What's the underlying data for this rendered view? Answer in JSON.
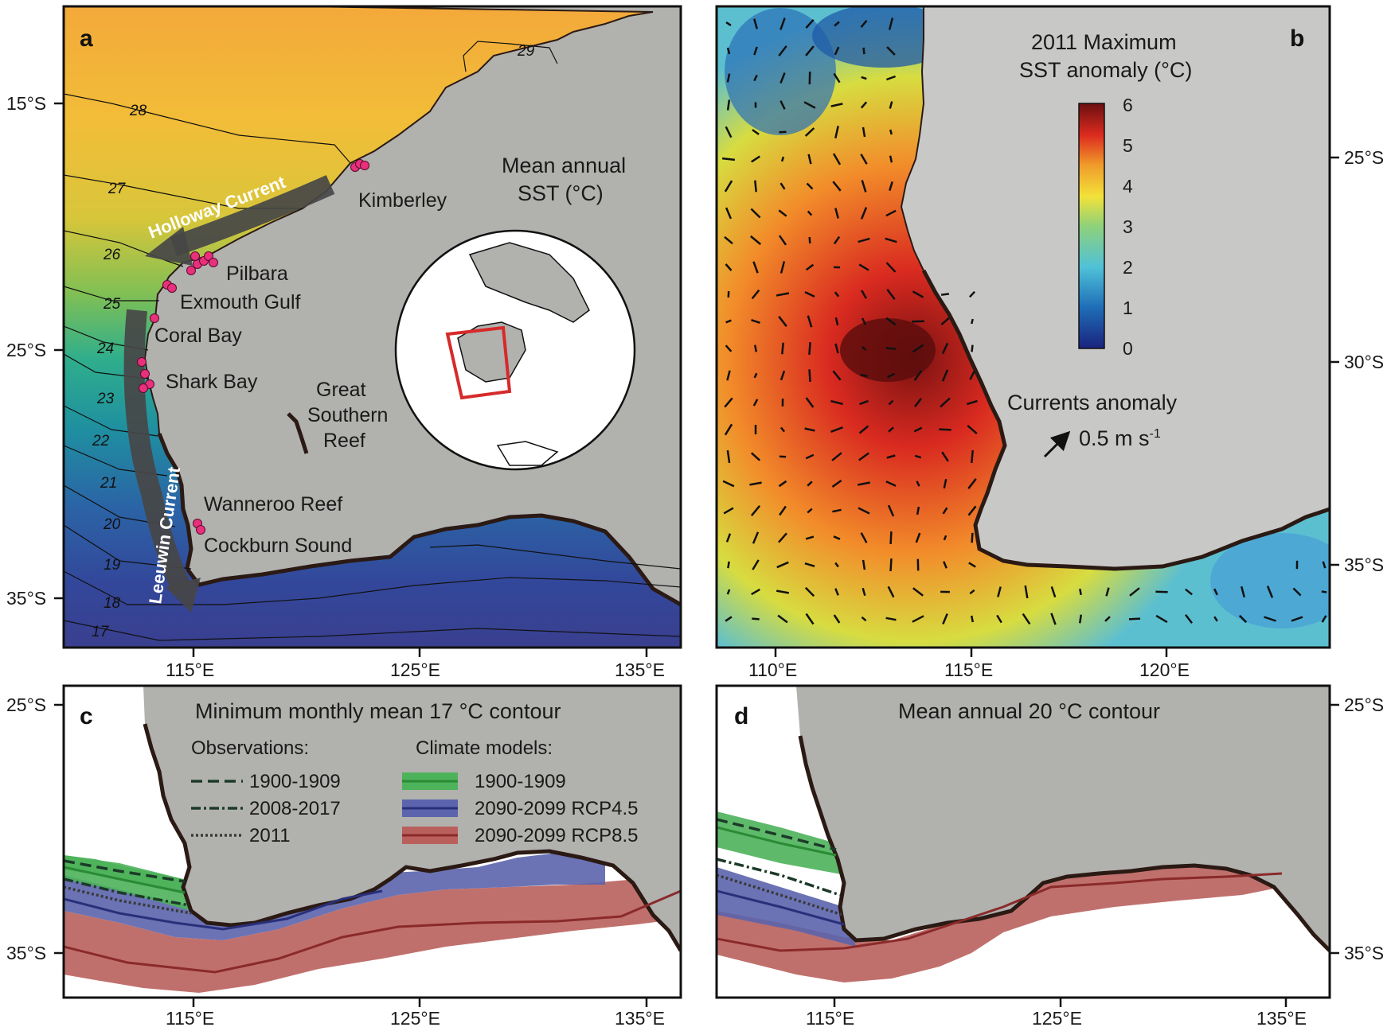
{
  "panels": {
    "a": {
      "letter": "a",
      "title_line1": "Mean annual",
      "title_line2": "SST (°C)",
      "y_ticks": [
        "15°S",
        "25°S",
        "35°S"
      ],
      "x_ticks": [
        "115°E",
        "125°E",
        "135°E"
      ],
      "isotherms": [
        "29",
        "28",
        "27",
        "26",
        "25",
        "24",
        "23",
        "22",
        "21",
        "20",
        "19",
        "18",
        "17"
      ],
      "currents": [
        "Holloway Current",
        "Leeuwin Current"
      ],
      "places": [
        "Kimberley",
        "Pilbara",
        "Exmouth Gulf",
        "Coral Bay",
        "Shark Bay",
        "Great",
        "Southern",
        "Reef",
        "Wanneroo Reef",
        "Cockburn Sound"
      ]
    },
    "b": {
      "letter": "b",
      "title_line1": "2011 Maximum",
      "title_line2": "SST anomaly (°C)",
      "colorbar_ticks": [
        "6",
        "5",
        "4",
        "3",
        "2",
        "1",
        "0"
      ],
      "currents_label": "Currents anomaly",
      "scale_value": "0.5 m s",
      "scale_exp": "-1",
      "y_ticks": [
        "25°S",
        "30°S",
        "35°S"
      ],
      "x_ticks": [
        "110°E",
        "115°E",
        "120°E"
      ]
    },
    "c": {
      "letter": "c",
      "title": "Minimum monthly mean 17 °C contour",
      "y_ticks": [
        "25°S",
        "35°S"
      ],
      "x_ticks": [
        "115°E",
        "125°E",
        "135°E"
      ],
      "legend": {
        "obs_header": "Observations:",
        "obs": [
          "1900-1909",
          "2008-2017",
          "2011"
        ],
        "models_header": "Climate models:",
        "models": [
          "1900-1909",
          "2090-2099 RCP4.5",
          "2090-2099 RCP8.5"
        ]
      }
    },
    "d": {
      "letter": "d",
      "title": "Mean annual 20 °C contour",
      "y_ticks": [
        "25°S",
        "35°S"
      ],
      "x_ticks": [
        "115°E",
        "125°E",
        "135°E"
      ]
    }
  },
  "colors": {
    "land": "#b1b1ae",
    "coast": "#2b1a14",
    "points": "#e8307d",
    "current_arrow": "#474747",
    "model_1900": "#4db35a",
    "model_rcp45": "#5b64ad",
    "model_rcp85": "#b9605c"
  }
}
